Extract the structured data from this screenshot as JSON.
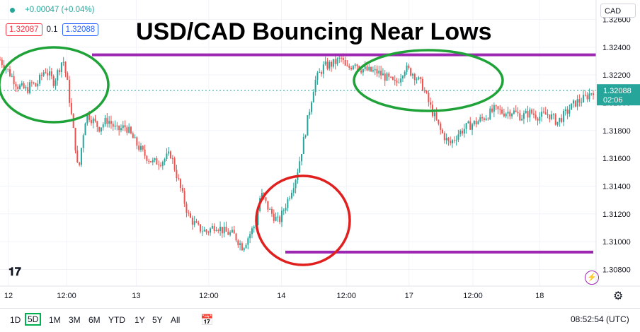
{
  "header": {
    "change": "+0.00047 (+0.04%)",
    "sell_price": "1.32087",
    "spread": "0.1",
    "buy_price": "1.32088",
    "symbol_currency": "CAD"
  },
  "headline": "USD/CAD Bouncing Near Lows",
  "chart_data": {
    "type": "line",
    "title": "USD/CAD Bouncing Near Lows",
    "xlabel": "",
    "ylabel": "",
    "yticks": [
      "1.32600",
      "1.32400",
      "1.32200",
      "1.32000",
      "1.31800",
      "1.31600",
      "1.31400",
      "1.31200",
      "1.31000",
      "1.30800"
    ],
    "ylim": [
      1.3068,
      1.3274
    ],
    "xticks": [
      "12",
      "12:00",
      "13",
      "12:00",
      "14",
      "12:00",
      "17",
      "12:00",
      "18"
    ],
    "current_price": "1.32088",
    "countdown": "02:06",
    "series": [
      {
        "x": [
          0,
          1,
          2,
          3,
          3.5,
          4,
          5,
          6,
          7,
          7.5,
          8,
          8.5,
          8.7,
          9,
          9.3,
          9.6,
          10,
          11,
          12,
          13,
          14,
          15,
          16,
          17,
          18,
          19,
          20,
          21,
          22,
          23,
          24,
          25,
          26,
          27,
          28,
          28.5,
          29,
          30,
          31,
          32,
          33,
          34,
          35,
          36,
          37,
          38,
          38.5,
          39,
          39.5,
          40,
          41,
          42,
          43,
          44,
          45,
          46,
          47,
          48,
          49,
          50,
          51,
          52,
          53,
          54,
          55,
          56,
          57,
          58,
          59,
          60,
          61,
          62,
          63,
          64,
          65,
          66
        ],
        "values": [
          1.3231,
          1.3222,
          1.3212,
          1.3209,
          1.3214,
          1.3212,
          1.3224,
          1.3215,
          1.3232,
          1.3214,
          1.3188,
          1.3163,
          1.3148,
          1.3165,
          1.318,
          1.3192,
          1.319,
          1.3182,
          1.3188,
          1.318,
          1.3183,
          1.3172,
          1.3163,
          1.3157,
          1.3158,
          1.3163,
          1.314,
          1.3118,
          1.311,
          1.3107,
          1.3112,
          1.3107,
          1.3105,
          1.3096,
          1.3108,
          1.3114,
          1.3135,
          1.3122,
          1.3114,
          1.313,
          1.3148,
          1.318,
          1.3215,
          1.3226,
          1.3228,
          1.3232,
          1.3224,
          1.3226,
          1.323,
          1.3225,
          1.3223,
          1.3222,
          1.3218,
          1.3213,
          1.3225,
          1.3221,
          1.3212,
          1.3195,
          1.318,
          1.317,
          1.3178,
          1.3183,
          1.3186,
          1.319,
          1.3195,
          1.3193,
          1.3194,
          1.319,
          1.3193,
          1.319,
          1.3192,
          1.3186,
          1.3193,
          1.32,
          1.3203,
          1.3209
        ]
      }
    ],
    "annotations": {
      "resistance": 1.32345,
      "support": 1.30925
    },
    "colors": {
      "up": "#26a69a",
      "down": "#ef5350",
      "level_line": "#9c27b0",
      "ellipse_green": "#1fa339",
      "ellipse_red": "#e0201f"
    }
  },
  "toolbar": {
    "ranges": [
      "1D",
      "5D",
      "1M",
      "3M",
      "6M",
      "YTD",
      "1Y",
      "5Y",
      "All"
    ],
    "active_range": "5D",
    "clock": "08:52:54 (UTC)"
  },
  "icons": {
    "logo": "tradingview-logo-icon",
    "settings": "gear-icon",
    "calendar": "calendar-icon",
    "alert": "lightning-icon"
  }
}
